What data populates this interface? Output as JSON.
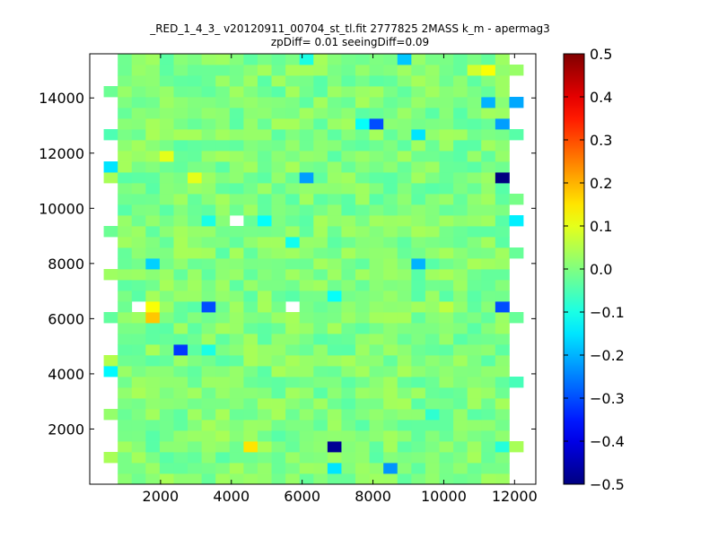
{
  "chart_data": {
    "type": "heatmap",
    "title": "_RED_1_4_3_ v20120911_00704_st_tl.fit 2777825 2MASS k_m - apermag3",
    "subtitle": "zpDiff= 0.01 seeingDiff=0.09",
    "xlabel": "",
    "ylabel": "",
    "xlim": [
      0,
      12600
    ],
    "ylim": [
      0,
      15600
    ],
    "xticks": [
      2000,
      4000,
      6000,
      8000,
      10000,
      12000
    ],
    "xticklabels": [
      "2000",
      "4000",
      "6000",
      "8000",
      "10000",
      "12000"
    ],
    "yticks": [
      2000,
      4000,
      6000,
      8000,
      10000,
      12000,
      14000
    ],
    "yticklabels": [
      "2000",
      "4000",
      "6000",
      "8000",
      "10000",
      "12000",
      "14000"
    ],
    "colorbar": {
      "colormap": "jet",
      "vmin": -0.5,
      "vmax": 0.5,
      "ticks": [
        0.5,
        0.4,
        0.3,
        0.2,
        0.1,
        0.0,
        -0.1,
        -0.2,
        -0.3,
        -0.4,
        -0.5
      ],
      "ticklabels": [
        "0.5",
        "0.4",
        "0.3",
        "0.2",
        "0.1",
        "0.0",
        "−0.1",
        "−0.2",
        "−0.3",
        "−0.4",
        "−0.5"
      ]
    },
    "grid": false,
    "cells": {
      "x_edges_start": 0,
      "cell_width": 395,
      "y_edges_start": 0,
      "cell_height": 390,
      "ncols": 32,
      "nrows": 40,
      "filled_col_range": [
        2,
        29
      ],
      "background_value": 0.0,
      "background_jitter": 0.04,
      "edge_cells": [
        [
          1,
          0.04
        ],
        [
          1,
          0.05
        ],
        [
          1,
          -0.02
        ],
        [
          1,
          0.02
        ],
        [
          1,
          -0.05
        ],
        [
          1,
          -0.07
        ],
        [
          1,
          0.05
        ],
        [
          1,
          0.0
        ],
        [
          1,
          -0.02
        ],
        [
          1,
          -0.03
        ],
        [
          1,
          0.06
        ],
        [
          1,
          -0.12
        ],
        [
          1,
          0.03
        ],
        [
          1,
          -0.03
        ],
        [
          1,
          0.02
        ],
        [
          1,
          -0.02
        ],
        [
          1,
          0.07
        ],
        [
          1,
          -0.01
        ],
        [
          1,
          0.04
        ],
        [
          1,
          -0.02
        ],
        [
          1,
          0.0
        ],
        [
          1,
          -0.05
        ],
        [
          1,
          0.01
        ],
        [
          1,
          0.02
        ],
        [
          1,
          -0.02
        ],
        [
          1,
          0.03
        ],
        [
          1,
          0.01
        ],
        [
          1,
          0.05
        ]
      ],
      "features": [
        {
          "x": 7000,
          "y": 1200,
          "value": -0.48
        },
        {
          "x": 7000,
          "y": 750,
          "value": -0.15
        },
        {
          "x": 8650,
          "y": 400,
          "value": -0.23
        },
        {
          "x": 4450,
          "y": 1200,
          "value": 0.15
        },
        {
          "x": 2650,
          "y": 4700,
          "value": -0.32
        },
        {
          "x": 1800,
          "y": 6000,
          "value": 0.18
        },
        {
          "x": 1800,
          "y": 6300,
          "value": 0.12
        },
        {
          "x": 3400,
          "y": 6600,
          "value": -0.3
        },
        {
          "x": 11600,
          "y": 6600,
          "value": -0.3
        },
        {
          "x": 1800,
          "y": 7900,
          "value": -0.17
        },
        {
          "x": 9200,
          "y": 8050,
          "value": -0.2
        },
        {
          "x": 6200,
          "y": 11000,
          "value": -0.22
        },
        {
          "x": 11600,
          "y": 10950,
          "value": -0.5
        },
        {
          "x": 8150,
          "y": 12950,
          "value": -0.3
        },
        {
          "x": 11600,
          "y": 12950,
          "value": -0.22
        },
        {
          "x": 9200,
          "y": 12500,
          "value": -0.15
        },
        {
          "x": 11200,
          "y": 14000,
          "value": -0.2
        },
        {
          "x": 9000,
          "y": 15400,
          "value": -0.18
        },
        {
          "x": 6150,
          "y": 15400,
          "value": -0.1
        },
        {
          "x": 11200,
          "y": 14900,
          "value": 0.12
        },
        {
          "x": 10800,
          "y": 14900,
          "value": 0.08
        },
        {
          "x": 12100,
          "y": 13650,
          "value": -0.21
        },
        {
          "x": 12100,
          "y": 9550,
          "value": -0.14
        },
        {
          "x": 600,
          "y": 11600,
          "value": -0.15
        },
        {
          "x": 650,
          "y": 4150,
          "value": -0.13
        },
        {
          "x": 3150,
          "y": 11000,
          "value": 0.1
        },
        {
          "x": 2150,
          "y": 12050,
          "value": 0.1
        },
        {
          "x": 7000,
          "y": 6850,
          "value": -0.12
        },
        {
          "x": 3400,
          "y": 4900,
          "value": -0.1
        },
        {
          "x": 5000,
          "y": 9550,
          "value": -0.12
        },
        {
          "x": 3400,
          "y": 9550,
          "value": -0.1
        },
        {
          "x": 5800,
          "y": 8650,
          "value": -0.11
        },
        {
          "x": 9600,
          "y": 2650,
          "value": -0.08
        },
        {
          "x": 11600,
          "y": 1450,
          "value": -0.09
        },
        {
          "x": 9900,
          "y": 6600,
          "value": 0.08
        },
        {
          "x": 10200,
          "y": 6600,
          "value": 0.06
        },
        {
          "x": 7800,
          "y": 12950,
          "value": -0.12
        }
      ],
      "missing": [
        {
          "x": 4150,
          "y": 9550
        },
        {
          "x": 5650,
          "y": 6600
        },
        {
          "x": 1400,
          "y": 6600
        }
      ]
    }
  }
}
